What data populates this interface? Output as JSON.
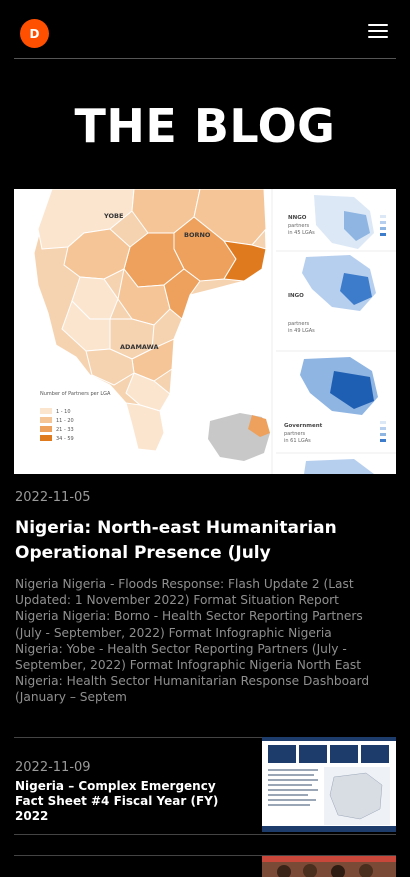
{
  "header": {
    "logo_letter": "D"
  },
  "page_title": "THE BLOG",
  "featured": {
    "date": "2022-11-05",
    "title": "Nigeria: North-east Humanitarian Operational Presence (July",
    "excerpt": "Nigeria Nigeria - Floods Response: Flash Update 2 (Last Updated: 1 November 2022) Format Situation Report Nigeria Nigeria: Borno - Health Sector Reporting Partners (July - September, 2022) Format Infographic Nigeria Nigeria: Yobe - Health Sector Reporting Partners (July - September, 2022) Format Infographic Nigeria North East Nigeria: Health Sector Humanitarian Response Dashboard (January – Septem",
    "map": {
      "labels": [
        "YOBE",
        "BORNO",
        "ADAMAWA"
      ],
      "legend_title": "Number of Partners per LGA",
      "legend": [
        "1 - 10",
        "11 - 20",
        "21 - 33",
        "34 - 59"
      ],
      "legend_colors": [
        "#fbe5cf",
        "#f5c597",
        "#eea15d",
        "#e07a1f"
      ],
      "side_panels": [
        {
          "heading": "NNGO",
          "line2": "partners",
          "line3": "in 45 LGAs"
        },
        {
          "heading": "INGO",
          "line2": "partners",
          "line3": "in 49 LGAs"
        },
        {
          "heading": "Government",
          "line2": "partners",
          "line3": "in 61 LGAs"
        }
      ]
    }
  },
  "posts": [
    {
      "date": "2022-11-09",
      "title": "Nigeria – Complex Emergency Fact Sheet #4 Fiscal Year (FY) 2022"
    }
  ],
  "colors": {
    "accent": "#ff4f00",
    "background": "#000000"
  }
}
